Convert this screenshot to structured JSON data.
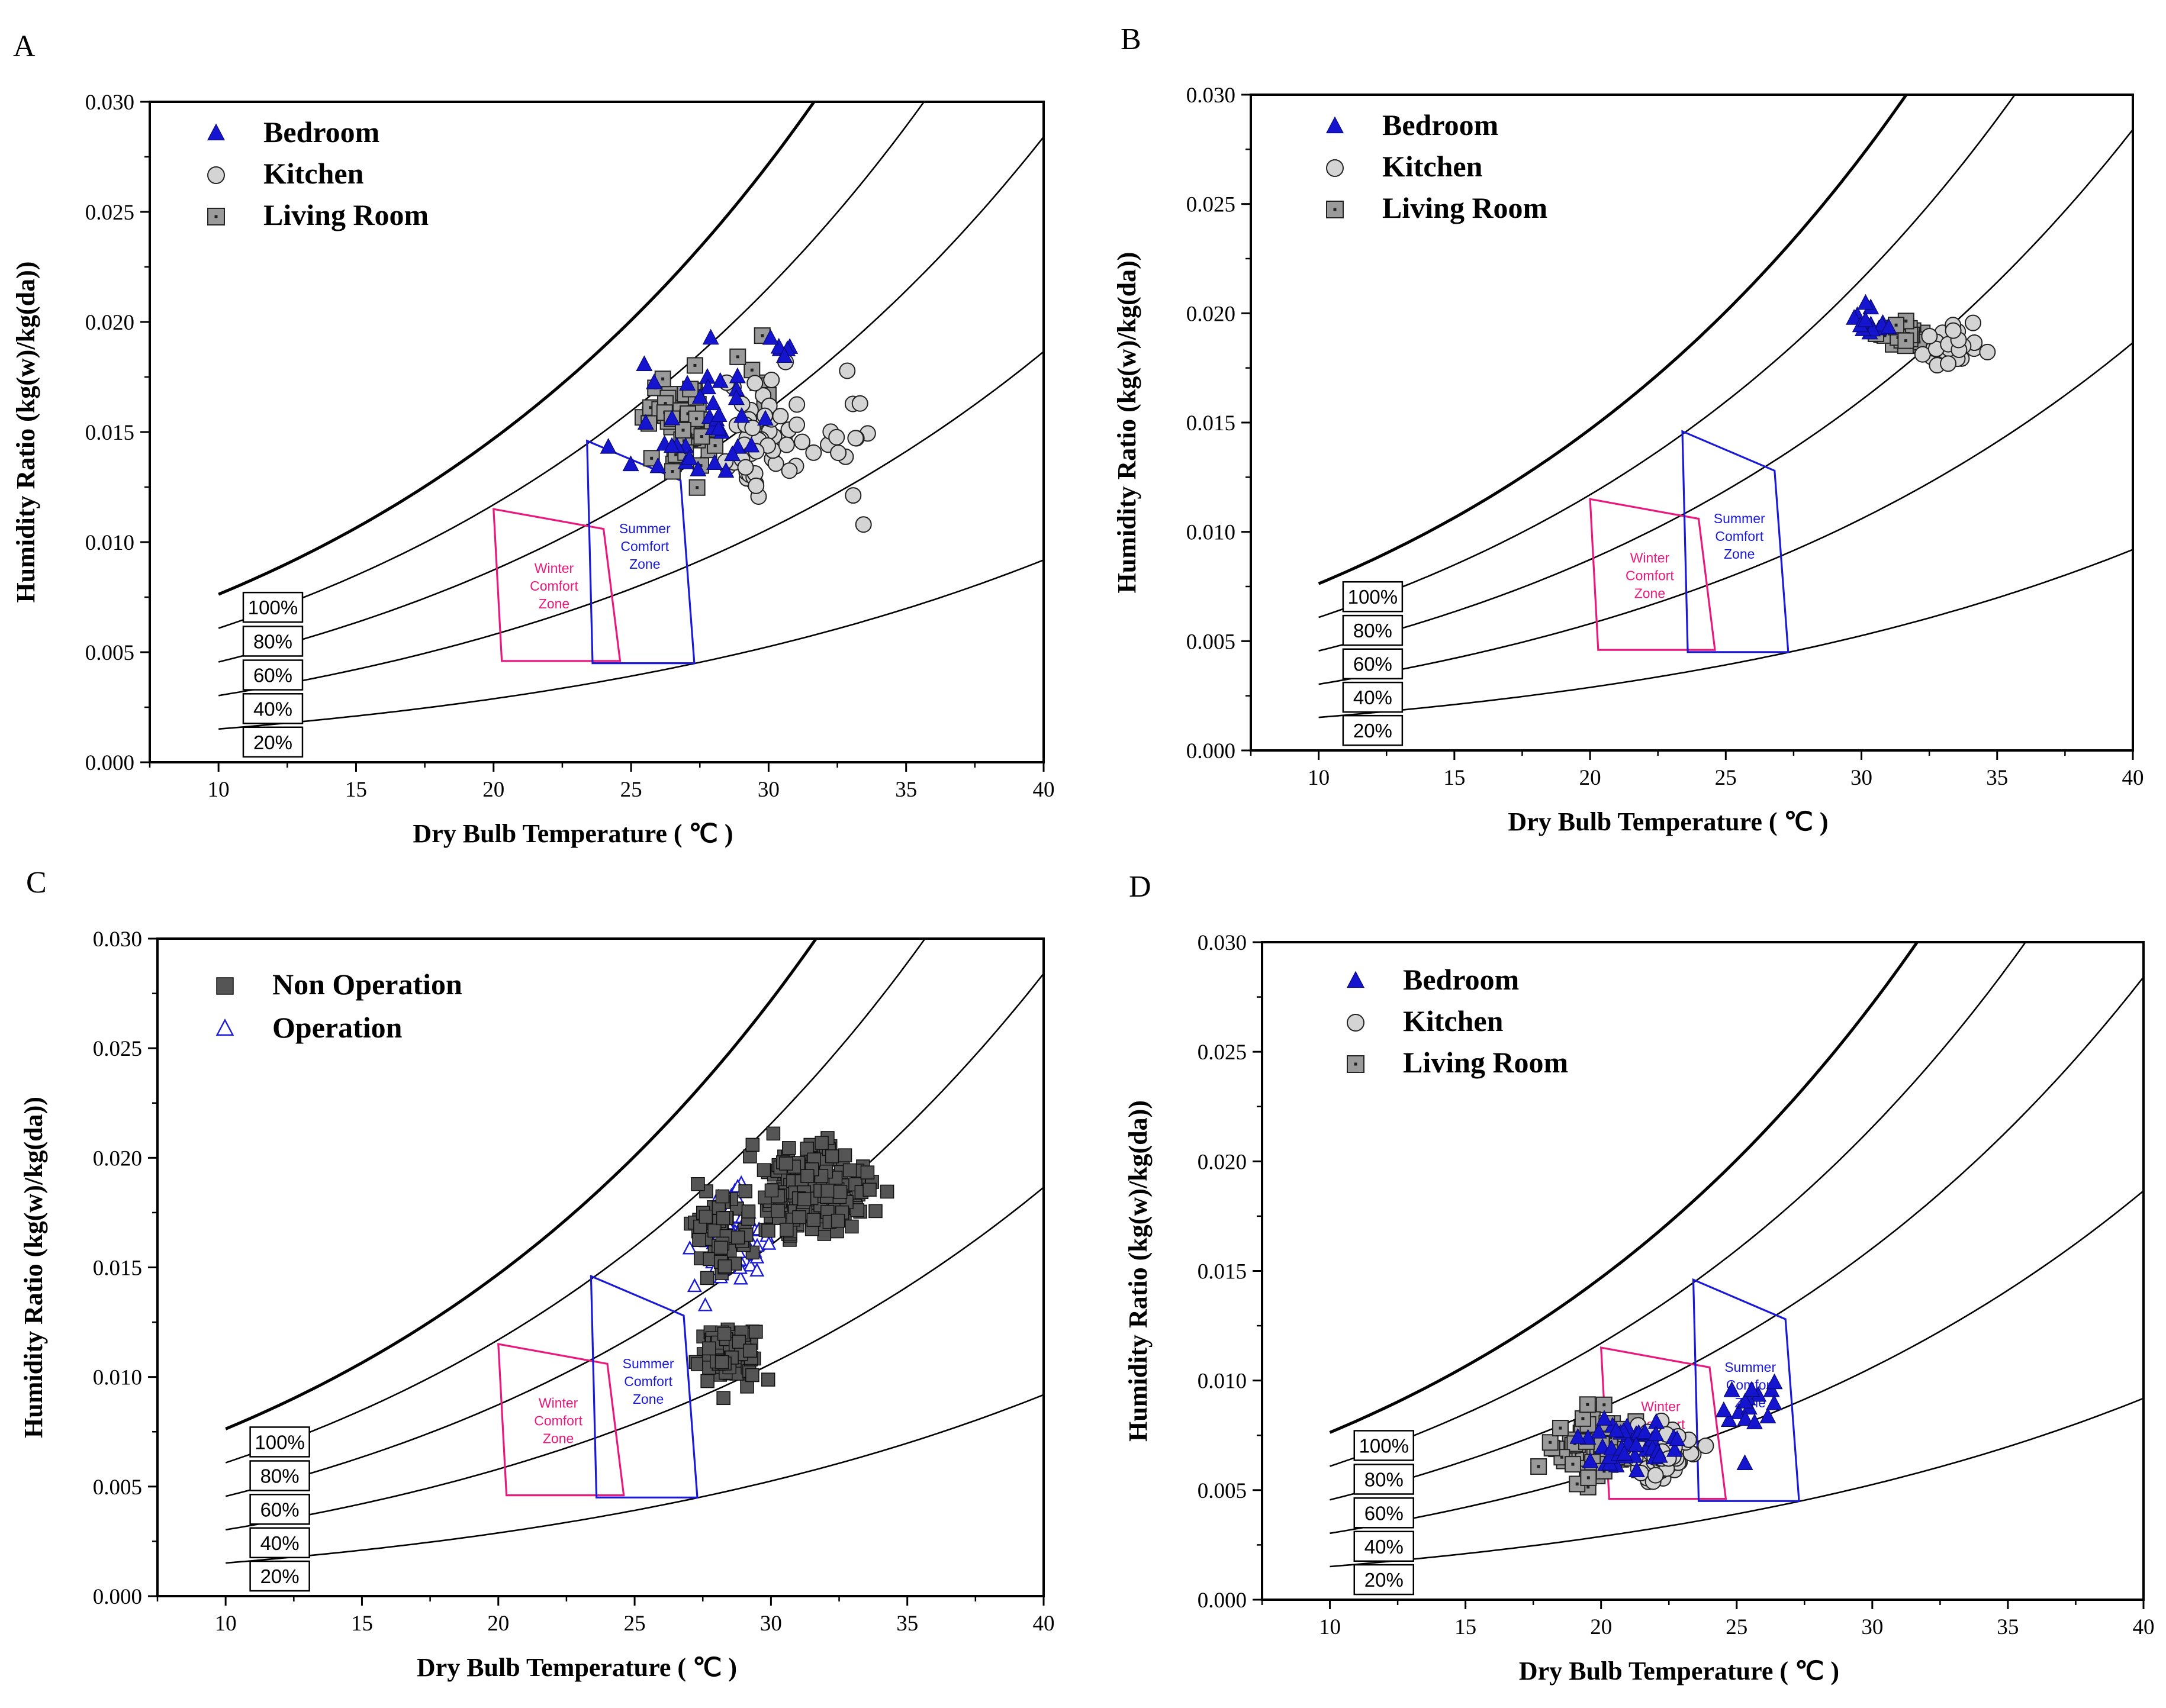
{
  "figure": {
    "colors": {
      "winter_zone": "#e8197d",
      "summer_zone": "#1a1ad6",
      "bedroom": "#1515d0",
      "kitchen_fill": "#d4d4d4",
      "living_fill": "#9a9a9a",
      "non_operation": "#555555",
      "operation": "#1a1ad6"
    }
  },
  "chart_data": [
    {
      "panel": "A",
      "type": "scatter",
      "xlabel": "Dry Bulb Temperature ( ℃ )",
      "ylabel": "Humidity Ratio (kg(w)/kg(da))",
      "xlim": [
        7.5,
        40
      ],
      "ylim": [
        0,
        0.03
      ],
      "x_ticks": [
        "10",
        "15",
        "20",
        "25",
        "30",
        "35",
        "40"
      ],
      "y_ticks": [
        "0.000",
        "0.005",
        "0.010",
        "0.015",
        "0.020",
        "0.025",
        "0.030"
      ],
      "rh_labels": [
        "100%",
        "80%",
        "60%",
        "40%",
        "20%"
      ],
      "zones": {
        "winter": [
          "Winter",
          "Comfort",
          "Zone"
        ],
        "summer": [
          "Summer",
          "Comfort",
          "Zone"
        ]
      },
      "series": [
        {
          "name": "Bedroom",
          "marker": "triangle",
          "clusters": [
            {
              "cx": 27.5,
              "cy": 0.0155,
              "sx": 2.2,
              "sy": 0.0025,
              "n": 38
            },
            {
              "cx": 30.5,
              "cy": 0.0185,
              "sx": 0.6,
              "sy": 0.0012,
              "n": 5
            }
          ]
        },
        {
          "name": "Kitchen",
          "marker": "circle",
          "clusters": [
            {
              "cx": 29.5,
              "cy": 0.0145,
              "sx": 1.2,
              "sy": 0.0025,
              "n": 55
            },
            {
              "cx": 32.5,
              "cy": 0.0155,
              "sx": 1.2,
              "sy": 0.0035,
              "n": 14
            }
          ]
        },
        {
          "name": "Living Room",
          "marker": "square",
          "clusters": [
            {
              "cx": 26.8,
              "cy": 0.0155,
              "sx": 1.1,
              "sy": 0.0022,
              "n": 55
            },
            {
              "cx": 29.5,
              "cy": 0.0175,
              "sx": 0.8,
              "sy": 0.0015,
              "n": 8
            }
          ]
        }
      ]
    },
    {
      "panel": "B",
      "type": "scatter",
      "xlabel": "Dry Bulb Temperature ( ℃ )",
      "ylabel": "Humidity Ratio (kg(w)/kg(da))",
      "xlim": [
        7.5,
        40
      ],
      "ylim": [
        0,
        0.03
      ],
      "x_ticks": [
        "10",
        "15",
        "20",
        "25",
        "30",
        "35",
        "40"
      ],
      "y_ticks": [
        "0.000",
        "0.005",
        "0.010",
        "0.015",
        "0.020",
        "0.025",
        "0.030"
      ],
      "rh_labels": [
        "100%",
        "80%",
        "60%",
        "40%",
        "20%"
      ],
      "zones": {
        "winter": [
          "Winter",
          "Comfort",
          "Zone"
        ],
        "summer": [
          "Summer",
          "Comfort",
          "Zone"
        ]
      },
      "series": [
        {
          "name": "Bedroom",
          "marker": "triangle",
          "clusters": [
            {
              "cx": 30.2,
              "cy": 0.0193,
              "sx": 0.7,
              "sy": 0.0007,
              "n": 14
            }
          ]
        },
        {
          "name": "Kitchen",
          "marker": "circle",
          "clusters": [
            {
              "cx": 33.2,
              "cy": 0.0185,
              "sx": 1.0,
              "sy": 0.0008,
              "n": 30
            }
          ]
        },
        {
          "name": "Living Room",
          "marker": "square",
          "clusters": [
            {
              "cx": 31.5,
              "cy": 0.0189,
              "sx": 0.8,
              "sy": 0.0007,
              "n": 30
            }
          ]
        }
      ]
    },
    {
      "panel": "C",
      "type": "scatter",
      "xlabel": "Dry Bulb Temperature ( ℃ )",
      "ylabel": "Humidity Ratio (kg(w)/kg(da))",
      "xlim": [
        7.5,
        40
      ],
      "ylim": [
        0,
        0.03
      ],
      "x_ticks": [
        "10",
        "15",
        "20",
        "25",
        "30",
        "35",
        "40"
      ],
      "y_ticks": [
        "0.000",
        "0.005",
        "0.010",
        "0.015",
        "0.020",
        "0.025",
        "0.030"
      ],
      "rh_labels": [
        "100%",
        "80%",
        "60%",
        "40%",
        "20%"
      ],
      "zones": {
        "winter": [
          "Winter",
          "Comfort",
          "Zone"
        ],
        "summer": [
          "Summer",
          "Comfort",
          "Zone"
        ]
      },
      "series": [
        {
          "name": "Non Operation",
          "marker": "square",
          "clusters": [
            {
              "cx": 31.5,
              "cy": 0.0185,
              "sx": 1.6,
              "sy": 0.0017,
              "n": 220
            },
            {
              "cx": 28.5,
              "cy": 0.0112,
              "sx": 0.9,
              "sy": 0.0012,
              "n": 90
            },
            {
              "cx": 28.2,
              "cy": 0.0165,
              "sx": 1.0,
              "sy": 0.0018,
              "n": 60
            }
          ]
        },
        {
          "name": "Operation",
          "marker": "triangle-open",
          "clusters": [
            {
              "cx": 28.5,
              "cy": 0.0165,
              "sx": 1.1,
              "sy": 0.0017,
              "n": 130
            }
          ]
        }
      ]
    },
    {
      "panel": "D",
      "type": "scatter",
      "xlabel": "Dry Bulb Temperature ( ℃ )",
      "ylabel": "Humidity Ratio (kg(w)/kg(da))",
      "xlim": [
        7.5,
        40
      ],
      "ylim": [
        0,
        0.03
      ],
      "x_ticks": [
        "10",
        "15",
        "20",
        "25",
        "30",
        "35",
        "40"
      ],
      "y_ticks": [
        "0.000",
        "0.005",
        "0.010",
        "0.015",
        "0.020",
        "0.025",
        "0.030"
      ],
      "rh_labels": [
        "100%",
        "80%",
        "60%",
        "40%",
        "20%"
      ],
      "zones": {
        "winter": [
          "Winter",
          "Comfort",
          "Zone"
        ],
        "summer": [
          "Summer",
          "Comfort",
          "Zone"
        ]
      },
      "series": [
        {
          "name": "Bedroom",
          "marker": "triangle",
          "clusters": [
            {
              "cx": 21.0,
              "cy": 0.007,
              "sx": 2.2,
              "sy": 0.0013,
              "n": 45
            },
            {
              "cx": 25.5,
              "cy": 0.009,
              "sx": 1.0,
              "sy": 0.001,
              "n": 15
            }
          ]
        },
        {
          "name": "Kitchen",
          "marker": "circle",
          "clusters": [
            {
              "cx": 22.2,
              "cy": 0.0068,
              "sx": 0.9,
              "sy": 0.0011,
              "n": 110
            }
          ]
        },
        {
          "name": "Living Room",
          "marker": "square",
          "clusters": [
            {
              "cx": 19.8,
              "cy": 0.0068,
              "sx": 1.4,
              "sy": 0.0013,
              "n": 80
            }
          ]
        }
      ]
    }
  ]
}
